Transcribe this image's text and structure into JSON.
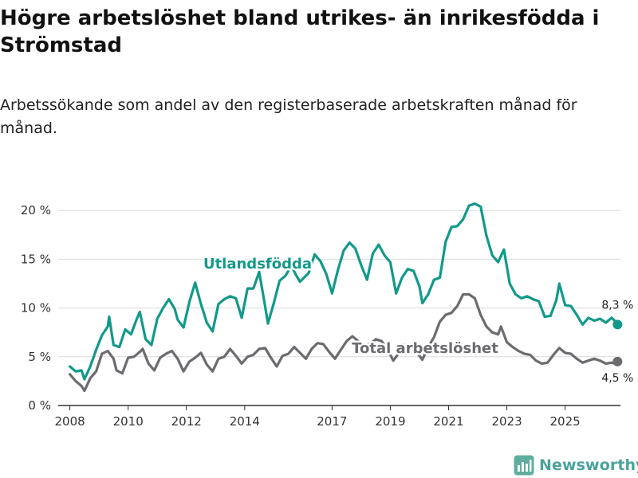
{
  "header": {
    "title": "Högre arbetslöshet bland utrikes- än inrikesfödda i Strömstad",
    "subtitle": "Arbetssökande som andel av den registerbaserade arbetskraften månad för månad."
  },
  "brand": {
    "name": "Newsworthy"
  },
  "colors": {
    "utrikes": "#12998a",
    "total": "#6b6b70",
    "grid": "#dcdcdc",
    "axis": "#333333"
  },
  "chart_data": {
    "type": "line",
    "title": "Högre arbetslöshet bland utrikes- än inrikesfödda i Strömstad",
    "ylim": [
      0,
      21
    ],
    "xlim": [
      2007.6,
      2026.9
    ],
    "y_ticks": [
      0,
      5,
      10,
      15,
      20
    ],
    "y_tick_labels": [
      "0 %",
      "5 %",
      "10 %",
      "15 %",
      "20 %"
    ],
    "x_ticks": [
      2008,
      2010,
      2012,
      2014,
      2017,
      2019,
      2021,
      2023,
      2025
    ],
    "x_tick_labels": [
      "2008",
      "2010",
      "2012",
      "2014",
      "2017",
      "2019",
      "2021",
      "2023",
      "2025"
    ],
    "series": [
      {
        "name": "Utlandsfödda",
        "label": "Utlandsfödda",
        "end_label": "8,3 %",
        "points": [
          [
            2008.0,
            4.0
          ],
          [
            2008.2,
            3.5
          ],
          [
            2008.4,
            3.6
          ],
          [
            2008.5,
            2.7
          ],
          [
            2008.7,
            4.0
          ],
          [
            2008.9,
            5.7
          ],
          [
            2009.1,
            7.2
          ],
          [
            2009.3,
            8.1
          ],
          [
            2009.35,
            9.1
          ],
          [
            2009.5,
            6.2
          ],
          [
            2009.7,
            6.0
          ],
          [
            2009.9,
            7.8
          ],
          [
            2010.1,
            7.3
          ],
          [
            2010.3,
            8.9
          ],
          [
            2010.4,
            9.6
          ],
          [
            2010.6,
            6.8
          ],
          [
            2010.8,
            6.2
          ],
          [
            2011.0,
            8.9
          ],
          [
            2011.2,
            10.0
          ],
          [
            2011.4,
            10.9
          ],
          [
            2011.6,
            9.9
          ],
          [
            2011.7,
            8.8
          ],
          [
            2011.9,
            8.0
          ],
          [
            2012.1,
            10.6
          ],
          [
            2012.3,
            12.6
          ],
          [
            2012.5,
            10.4
          ],
          [
            2012.7,
            8.5
          ],
          [
            2012.9,
            7.6
          ],
          [
            2013.1,
            10.4
          ],
          [
            2013.3,
            10.9
          ],
          [
            2013.5,
            11.2
          ],
          [
            2013.7,
            11.0
          ],
          [
            2013.9,
            9.0
          ],
          [
            2014.1,
            12.0
          ],
          [
            2014.3,
            12.0
          ],
          [
            2014.5,
            13.7
          ],
          [
            2014.7,
            10.2
          ],
          [
            2014.8,
            8.4
          ],
          [
            2015.0,
            10.5
          ],
          [
            2015.2,
            12.8
          ],
          [
            2015.4,
            13.3
          ],
          [
            2015.6,
            14.3
          ],
          [
            2015.8,
            13.2
          ],
          [
            2015.9,
            12.7
          ],
          [
            2016.2,
            13.6
          ],
          [
            2016.4,
            15.5
          ],
          [
            2016.6,
            14.8
          ],
          [
            2016.8,
            13.5
          ],
          [
            2017.0,
            11.5
          ],
          [
            2017.2,
            13.9
          ],
          [
            2017.4,
            15.9
          ],
          [
            2017.6,
            16.7
          ],
          [
            2017.8,
            16.1
          ],
          [
            2018.0,
            14.4
          ],
          [
            2018.2,
            12.9
          ],
          [
            2018.4,
            15.6
          ],
          [
            2018.6,
            16.5
          ],
          [
            2018.8,
            15.4
          ],
          [
            2019.0,
            14.7
          ],
          [
            2019.2,
            11.5
          ],
          [
            2019.4,
            13.1
          ],
          [
            2019.6,
            14.0
          ],
          [
            2019.8,
            13.8
          ],
          [
            2020.0,
            12.2
          ],
          [
            2020.1,
            10.5
          ],
          [
            2020.3,
            11.4
          ],
          [
            2020.5,
            12.9
          ],
          [
            2020.7,
            13.1
          ],
          [
            2020.9,
            16.8
          ],
          [
            2021.1,
            18.3
          ],
          [
            2021.3,
            18.4
          ],
          [
            2021.5,
            19.1
          ],
          [
            2021.7,
            20.5
          ],
          [
            2021.9,
            20.7
          ],
          [
            2022.1,
            20.4
          ],
          [
            2022.3,
            17.4
          ],
          [
            2022.5,
            15.4
          ],
          [
            2022.7,
            14.7
          ],
          [
            2022.9,
            16.0
          ],
          [
            2023.1,
            12.5
          ],
          [
            2023.3,
            11.4
          ],
          [
            2023.5,
            11.0
          ],
          [
            2023.7,
            11.2
          ],
          [
            2023.9,
            10.9
          ],
          [
            2024.1,
            10.7
          ],
          [
            2024.3,
            9.1
          ],
          [
            2024.5,
            9.2
          ],
          [
            2024.7,
            10.8
          ],
          [
            2024.8,
            12.5
          ],
          [
            2025.0,
            10.3
          ],
          [
            2025.2,
            10.2
          ],
          [
            2025.4,
            9.3
          ],
          [
            2025.6,
            8.3
          ],
          [
            2025.8,
            9.0
          ],
          [
            2026.0,
            8.7
          ],
          [
            2026.2,
            8.9
          ],
          [
            2026.4,
            8.5
          ],
          [
            2026.6,
            9.0
          ],
          [
            2026.7,
            8.7
          ],
          [
            2026.8,
            8.3
          ]
        ]
      },
      {
        "name": "Total arbetslöshet",
        "label": "Total arbetslöshet",
        "end_label": "4,5 %",
        "points": [
          [
            2008.0,
            3.2
          ],
          [
            2008.2,
            2.5
          ],
          [
            2008.4,
            2.0
          ],
          [
            2008.5,
            1.5
          ],
          [
            2008.7,
            2.8
          ],
          [
            2008.9,
            3.5
          ],
          [
            2009.1,
            5.3
          ],
          [
            2009.3,
            5.6
          ],
          [
            2009.5,
            4.8
          ],
          [
            2009.6,
            3.6
          ],
          [
            2009.8,
            3.3
          ],
          [
            2010.0,
            4.9
          ],
          [
            2010.2,
            5.0
          ],
          [
            2010.4,
            5.5
          ],
          [
            2010.5,
            5.8
          ],
          [
            2010.7,
            4.3
          ],
          [
            2010.9,
            3.6
          ],
          [
            2011.1,
            4.9
          ],
          [
            2011.3,
            5.3
          ],
          [
            2011.5,
            5.6
          ],
          [
            2011.7,
            4.8
          ],
          [
            2011.9,
            3.5
          ],
          [
            2012.1,
            4.5
          ],
          [
            2012.3,
            4.9
          ],
          [
            2012.5,
            5.4
          ],
          [
            2012.7,
            4.2
          ],
          [
            2012.9,
            3.5
          ],
          [
            2013.1,
            4.8
          ],
          [
            2013.3,
            5.0
          ],
          [
            2013.5,
            5.8
          ],
          [
            2013.7,
            5.1
          ],
          [
            2013.9,
            4.3
          ],
          [
            2014.1,
            5.0
          ],
          [
            2014.3,
            5.2
          ],
          [
            2014.5,
            5.8
          ],
          [
            2014.7,
            5.9
          ],
          [
            2014.9,
            4.9
          ],
          [
            2015.1,
            4.0
          ],
          [
            2015.3,
            5.1
          ],
          [
            2015.5,
            5.3
          ],
          [
            2015.7,
            6.0
          ],
          [
            2015.9,
            5.4
          ],
          [
            2016.1,
            4.8
          ],
          [
            2016.3,
            5.8
          ],
          [
            2016.5,
            6.4
          ],
          [
            2016.7,
            6.3
          ],
          [
            2016.9,
            5.5
          ],
          [
            2017.1,
            4.8
          ],
          [
            2017.3,
            5.7
          ],
          [
            2017.5,
            6.6
          ],
          [
            2017.7,
            7.1
          ],
          [
            2017.9,
            6.6
          ],
          [
            2018.1,
            6.2
          ],
          [
            2018.3,
            6.3
          ],
          [
            2018.5,
            6.8
          ],
          [
            2018.7,
            6.6
          ],
          [
            2018.9,
            5.8
          ],
          [
            2019.1,
            4.6
          ],
          [
            2019.3,
            5.4
          ],
          [
            2019.5,
            6.2
          ],
          [
            2019.7,
            6.1
          ],
          [
            2019.9,
            5.5
          ],
          [
            2020.1,
            4.7
          ],
          [
            2020.3,
            6.0
          ],
          [
            2020.5,
            7.0
          ],
          [
            2020.7,
            8.6
          ],
          [
            2020.9,
            9.3
          ],
          [
            2021.1,
            9.5
          ],
          [
            2021.3,
            10.2
          ],
          [
            2021.5,
            11.4
          ],
          [
            2021.7,
            11.4
          ],
          [
            2021.9,
            11.0
          ],
          [
            2022.1,
            9.3
          ],
          [
            2022.3,
            8.1
          ],
          [
            2022.5,
            7.5
          ],
          [
            2022.7,
            7.3
          ],
          [
            2022.8,
            8.1
          ],
          [
            2023.0,
            6.5
          ],
          [
            2023.2,
            6.0
          ],
          [
            2023.4,
            5.6
          ],
          [
            2023.6,
            5.3
          ],
          [
            2023.8,
            5.2
          ],
          [
            2024.0,
            4.6
          ],
          [
            2024.2,
            4.3
          ],
          [
            2024.4,
            4.4
          ],
          [
            2024.6,
            5.2
          ],
          [
            2024.8,
            5.9
          ],
          [
            2025.0,
            5.4
          ],
          [
            2025.2,
            5.3
          ],
          [
            2025.4,
            4.8
          ],
          [
            2025.6,
            4.4
          ],
          [
            2025.8,
            4.6
          ],
          [
            2026.0,
            4.8
          ],
          [
            2026.2,
            4.6
          ],
          [
            2026.4,
            4.3
          ],
          [
            2026.6,
            4.4
          ],
          [
            2026.7,
            4.3
          ],
          [
            2026.8,
            4.5
          ]
        ]
      }
    ]
  }
}
